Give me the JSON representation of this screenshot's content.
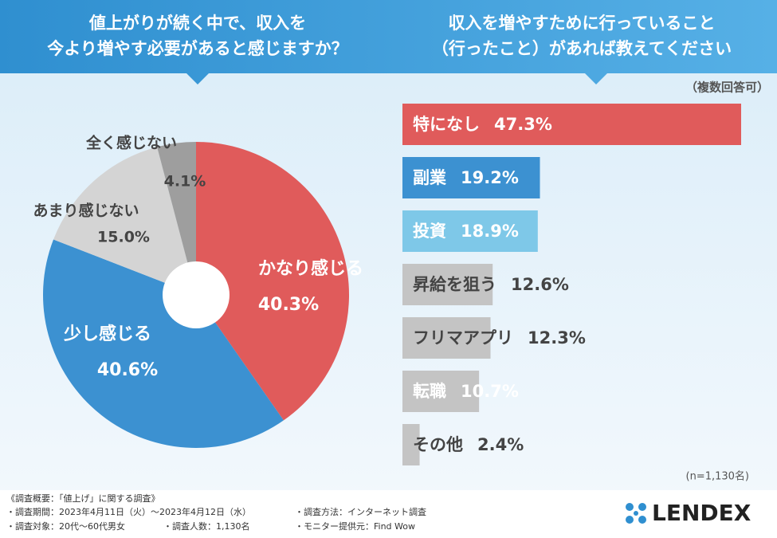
{
  "chart_data": [
    {
      "type": "pie",
      "title": [
        "値上がりが続く中で、収入を",
        "今より増やす必要があると感じますか？"
      ],
      "categories": [
        "かなり感じる",
        "少し感じる",
        "あまり感じない",
        "全く感じない"
      ],
      "values": [
        40.3,
        40.6,
        15.0,
        4.1
      ],
      "value_labels": [
        "40.3%",
        "40.6%",
        "15.0%",
        "4.1%"
      ],
      "colors": [
        "#e05b5b",
        "#3c91d1",
        "#d4d4d4",
        "#9e9e9e"
      ]
    },
    {
      "type": "hbar",
      "title": [
        "収入を増やすために行っていること",
        "（行ったこと）があれば教えてください"
      ],
      "subtitle": "（複数回答可）",
      "categories": [
        "特になし",
        "副業",
        "投資",
        "昇給を狙う",
        "フリマアプリ",
        "転職",
        "その他"
      ],
      "values": [
        47.3,
        19.2,
        18.9,
        12.6,
        12.3,
        10.7,
        2.4
      ],
      "value_labels": [
        "47.3%",
        "19.2%",
        "18.9%",
        "12.6%",
        "12.3%",
        "10.7%",
        "2.4%"
      ],
      "colors": [
        "#e05b5b",
        "#3c91d1",
        "#7ec8e8",
        "#c4c4c4",
        "#c4c4c4",
        "#c4c4c4",
        "#c4c4c4"
      ],
      "note": "(n=1,130名)"
    }
  ],
  "footer": {
    "heading": "《調査概要：「値上げ」に関する調査》",
    "items": [
      "・調査期間：2023年4月11日（火）～2023年4月12日（水）",
      "・調査方法：インターネット調査",
      "・調査対象：20代～60代男女",
      "・調査人数：1,130名",
      "・モニター提供元：Find Wow"
    ],
    "logo": "LENDEX"
  }
}
